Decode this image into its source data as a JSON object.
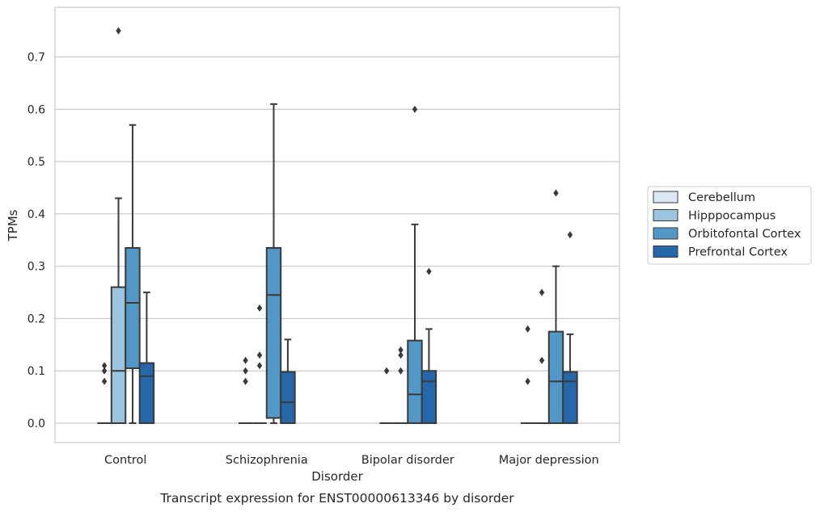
{
  "chart_data": {
    "type": "box",
    "caption": "Transcript expression for ENST00000613346 by disorder",
    "xlabel": "Disorder",
    "ylabel": "TPMs",
    "ylim": [
      -0.037,
      0.795
    ],
    "yticks": [
      0.0,
      0.1,
      0.2,
      0.3,
      0.4,
      0.5,
      0.6,
      0.7
    ],
    "grid": "horizontal",
    "legend_position": "right",
    "categories": [
      "Control",
      "Schizophrenia",
      "Bipolar disorder",
      "Major depression"
    ],
    "series": [
      {
        "name": "Cerebellum",
        "color": "#dbe9f6",
        "boxes": [
          {
            "whislo": 0.0,
            "q1": 0.0,
            "med": 0.0,
            "q3": 0.0,
            "whishi": 0.0,
            "fliers": [
              0.08,
              0.1,
              0.11
            ]
          },
          {
            "whislo": 0.0,
            "q1": 0.0,
            "med": 0.0,
            "q3": 0.0,
            "whishi": 0.0,
            "fliers": [
              0.08,
              0.1,
              0.12
            ]
          },
          {
            "whislo": 0.0,
            "q1": 0.0,
            "med": 0.0,
            "q3": 0.0,
            "whishi": 0.0,
            "fliers": [
              0.1
            ]
          },
          {
            "whislo": 0.0,
            "q1": 0.0,
            "med": 0.0,
            "q3": 0.0,
            "whishi": 0.0,
            "fliers": [
              0.08,
              0.18
            ]
          }
        ]
      },
      {
        "name": "Hipppocampus",
        "color": "#9ac4df",
        "boxes": [
          {
            "whislo": 0.0,
            "q1": 0.0,
            "med": 0.1,
            "q3": 0.26,
            "whishi": 0.43,
            "fliers": [
              0.75
            ]
          },
          {
            "whislo": 0.0,
            "q1": 0.0,
            "med": 0.0,
            "q3": 0.0,
            "whishi": 0.0,
            "fliers": [
              0.11,
              0.13,
              0.22
            ]
          },
          {
            "whislo": 0.0,
            "q1": 0.0,
            "med": 0.0,
            "q3": 0.0,
            "whishi": 0.0,
            "fliers": [
              0.1,
              0.13,
              0.14
            ]
          },
          {
            "whislo": 0.0,
            "q1": 0.0,
            "med": 0.0,
            "q3": 0.0,
            "whishi": 0.0,
            "fliers": [
              0.12,
              0.25
            ]
          }
        ]
      },
      {
        "name": "Orbitofontal Cortex",
        "color": "#5297c6",
        "boxes": [
          {
            "whislo": 0.0,
            "q1": 0.105,
            "med": 0.23,
            "q3": 0.335,
            "whishi": 0.57,
            "fliers": []
          },
          {
            "whislo": 0.0,
            "q1": 0.01,
            "med": 0.245,
            "q3": 0.335,
            "whishi": 0.61,
            "fliers": []
          },
          {
            "whislo": 0.0,
            "q1": 0.0,
            "med": 0.055,
            "q3": 0.158,
            "whishi": 0.38,
            "fliers": [
              0.6
            ]
          },
          {
            "whislo": 0.0,
            "q1": 0.0,
            "med": 0.08,
            "q3": 0.175,
            "whishi": 0.3,
            "fliers": [
              0.44
            ]
          }
        ]
      },
      {
        "name": "Prefrontal Cortex",
        "color": "#2567a8",
        "boxes": [
          {
            "whislo": 0.0,
            "q1": 0.0,
            "med": 0.09,
            "q3": 0.115,
            "whishi": 0.25,
            "fliers": []
          },
          {
            "whislo": 0.0,
            "q1": 0.0,
            "med": 0.04,
            "q3": 0.098,
            "whishi": 0.16,
            "fliers": []
          },
          {
            "whislo": 0.0,
            "q1": 0.0,
            "med": 0.08,
            "q3": 0.1,
            "whishi": 0.18,
            "fliers": [
              0.29
            ]
          },
          {
            "whislo": 0.0,
            "q1": 0.0,
            "med": 0.08,
            "q3": 0.098,
            "whishi": 0.17,
            "fliers": [
              0.36
            ]
          }
        ]
      }
    ]
  }
}
